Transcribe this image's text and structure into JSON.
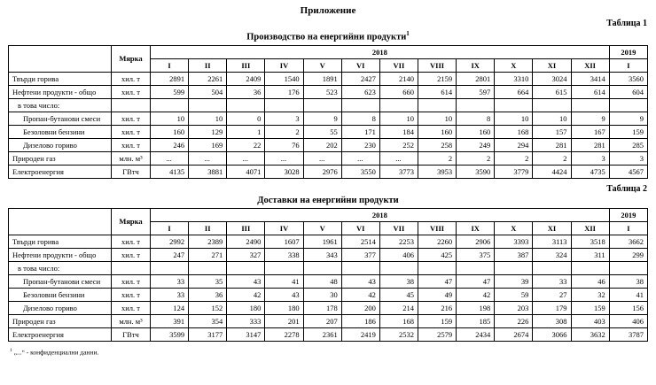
{
  "page": {
    "title": "Приложение",
    "footnote_sup": "1",
    "footnote_text": "„...“ - конфиденциални данни."
  },
  "tables": [
    {
      "label": "Таблица 1",
      "title": "Производство на енергийни продукти",
      "title_sup": "1",
      "unit_header": "Мярка",
      "year_main": "2018",
      "year_next": "2019",
      "months": [
        "I",
        "II",
        "III",
        "IV",
        "V",
        "VI",
        "VII",
        "VIII",
        "IX",
        "X",
        "XI",
        "XII"
      ],
      "next_month": "I",
      "rows": [
        {
          "label": "Твърди горива",
          "indent": 0,
          "unit": "хил. т",
          "values": [
            "2891",
            "2261",
            "2409",
            "1540",
            "1891",
            "2427",
            "2140",
            "2159",
            "2801",
            "3310",
            "3024",
            "3414",
            "3560"
          ]
        },
        {
          "label": "Нефтени продукти - общо",
          "indent": 0,
          "unit": "хил. т",
          "values": [
            "599",
            "504",
            "36",
            "176",
            "523",
            "623",
            "660",
            "614",
            "597",
            "664",
            "615",
            "614",
            "604"
          ]
        },
        {
          "label": "в това число:",
          "indent": 1,
          "unit": "",
          "values": [
            "",
            "",
            "",
            "",
            "",
            "",
            "",
            "",
            "",
            "",
            "",
            "",
            ""
          ]
        },
        {
          "label": "Пропан-бутанови смеси",
          "indent": 2,
          "unit": "хил. т",
          "values": [
            "10",
            "10",
            "0",
            "3",
            "9",
            "8",
            "10",
            "10",
            "8",
            "10",
            "10",
            "9",
            "9"
          ]
        },
        {
          "label": "Безоловни бензини",
          "indent": 2,
          "unit": "хил. т",
          "values": [
            "160",
            "129",
            "1",
            "2",
            "55",
            "171",
            "184",
            "160",
            "160",
            "168",
            "157",
            "167",
            "159"
          ]
        },
        {
          "label": "Дизелово гориво",
          "indent": 2,
          "unit": "хил. т",
          "values": [
            "246",
            "169",
            "22",
            "76",
            "202",
            "230",
            "252",
            "258",
            "249",
            "294",
            "281",
            "281",
            "285"
          ]
        },
        {
          "label": "Природен газ",
          "indent": 0,
          "unit": "млн. м³",
          "values": [
            "...",
            "...",
            "...",
            "...",
            "...",
            "...",
            "...",
            "2",
            "2",
            "2",
            "2",
            "3",
            "3"
          ]
        },
        {
          "label": "Електроенергия",
          "indent": 0,
          "unit": "ГВтч",
          "values": [
            "4135",
            "3881",
            "4071",
            "3028",
            "2976",
            "3550",
            "3773",
            "3953",
            "3590",
            "3779",
            "4424",
            "4735",
            "4567"
          ]
        }
      ]
    },
    {
      "label": "Таблица 2",
      "title": "Доставки на енергийни продукти",
      "title_sup": "",
      "unit_header": "Мярка",
      "year_main": "2018",
      "year_next": "2019",
      "months": [
        "I",
        "II",
        "III",
        "IV",
        "V",
        "VI",
        "VII",
        "VIII",
        "IX",
        "X",
        "XI",
        "XII"
      ],
      "next_month": "I",
      "rows": [
        {
          "label": "Твърди горива",
          "indent": 0,
          "unit": "хил. т",
          "values": [
            "2992",
            "2389",
            "2490",
            "1607",
            "1961",
            "2514",
            "2253",
            "2260",
            "2906",
            "3393",
            "3113",
            "3518",
            "3662"
          ]
        },
        {
          "label": "Нефтени продукти - общо",
          "indent": 0,
          "unit": "хил. т",
          "values": [
            "247",
            "271",
            "327",
            "338",
            "343",
            "377",
            "406",
            "425",
            "375",
            "387",
            "324",
            "311",
            "299"
          ]
        },
        {
          "label": "в това число:",
          "indent": 1,
          "unit": "",
          "values": [
            "",
            "",
            "",
            "",
            "",
            "",
            "",
            "",
            "",
            "",
            "",
            "",
            ""
          ]
        },
        {
          "label": "Пропан-бутанови смеси",
          "indent": 2,
          "unit": "хил. т",
          "values": [
            "33",
            "35",
            "43",
            "41",
            "48",
            "43",
            "38",
            "47",
            "47",
            "39",
            "33",
            "46",
            "38"
          ]
        },
        {
          "label": "Безоловни бензини",
          "indent": 2,
          "unit": "хил. т",
          "values": [
            "33",
            "36",
            "42",
            "43",
            "30",
            "42",
            "45",
            "49",
            "42",
            "59",
            "27",
            "32",
            "41"
          ]
        },
        {
          "label": "Дизелово гориво",
          "indent": 2,
          "unit": "хил. т",
          "values": [
            "124",
            "152",
            "180",
            "180",
            "178",
            "200",
            "214",
            "216",
            "198",
            "203",
            "179",
            "159",
            "156"
          ]
        },
        {
          "label": "Природен газ",
          "indent": 0,
          "unit": "млн. м³",
          "values": [
            "391",
            "354",
            "333",
            "201",
            "207",
            "186",
            "168",
            "159",
            "185",
            "226",
            "308",
            "403",
            "406"
          ]
        },
        {
          "label": "Електроенергия",
          "indent": 0,
          "unit": "ГВтч",
          "values": [
            "3599",
            "3177",
            "3147",
            "2278",
            "2361",
            "2419",
            "2532",
            "2579",
            "2434",
            "2674",
            "3066",
            "3632",
            "3787"
          ]
        }
      ]
    }
  ]
}
